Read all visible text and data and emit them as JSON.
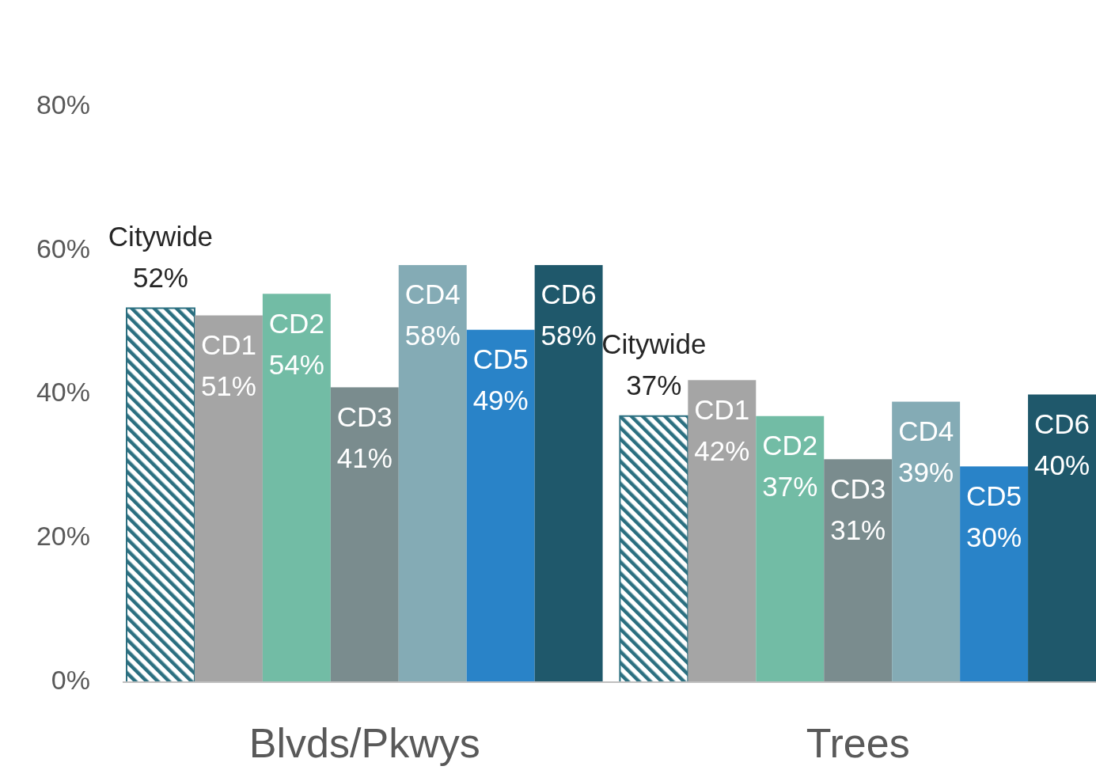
{
  "chart_data": {
    "type": "bar",
    "categories": [
      "Blvds/Pkwys",
      "Trees"
    ],
    "series": [
      {
        "name": "Citywide",
        "color": "#2b6f80",
        "values": [
          52,
          37
        ],
        "value_labels": [
          "52%",
          "37%"
        ]
      },
      {
        "name": "CD1",
        "color": "#a5a5a5",
        "values": [
          51,
          42
        ],
        "value_labels": [
          "51%",
          "42%"
        ]
      },
      {
        "name": "CD2",
        "color": "#72bca5",
        "values": [
          54,
          37
        ],
        "value_labels": [
          "54%",
          "37%"
        ]
      },
      {
        "name": "CD3",
        "color": "#7a8c8e",
        "values": [
          41,
          31
        ],
        "value_labels": [
          "41%",
          "31%"
        ]
      },
      {
        "name": "CD4",
        "color": "#84abb5",
        "values": [
          58,
          39
        ],
        "value_labels": [
          "58%",
          "39%"
        ]
      },
      {
        "name": "CD5",
        "color": "#2983c8",
        "values": [
          49,
          30
        ],
        "value_labels": [
          "49%",
          "30%"
        ]
      },
      {
        "name": "CD6",
        "color": "#1f586b",
        "values": [
          58,
          40
        ],
        "value_labels": [
          "58%",
          "40%"
        ]
      }
    ],
    "ylim": [
      0,
      80
    ],
    "yticks": [
      {
        "value": 0,
        "label": "0%"
      },
      {
        "value": 20,
        "label": "20%"
      },
      {
        "value": 40,
        "label": "40%"
      },
      {
        "value": 60,
        "label": "60%"
      },
      {
        "value": 80,
        "label": "80%"
      }
    ],
    "grid": false,
    "legend": false
  }
}
